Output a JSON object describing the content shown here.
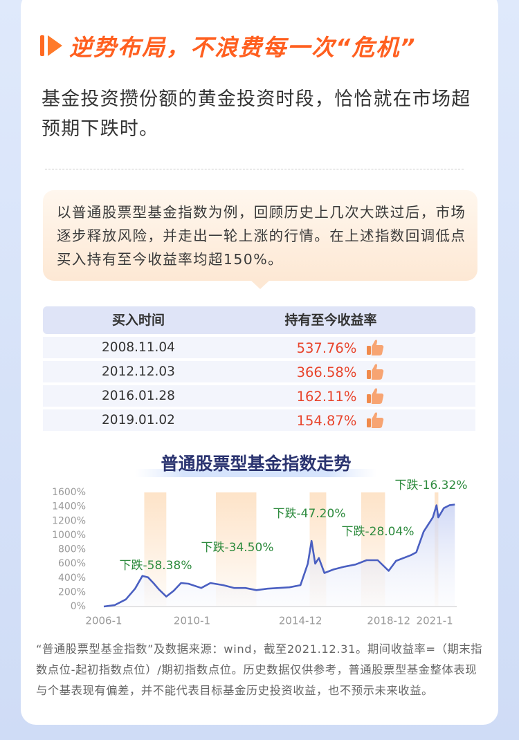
{
  "header": {
    "title": "逆势布局，不浪费每一次“危机”"
  },
  "intro": "基金投资攒份额的黄金投资时段，恰恰就在市场超预期下跌时。",
  "callout": "以普通股票型基金指数为例，回顾历史上几次大跌过后，市场逐步释放风险，并走出一轮上涨的行情。在上述指数回调低点买入持有至今收益率均超150%。",
  "table": {
    "columns": [
      "买入时间",
      "持有至今收益率"
    ],
    "rows": [
      [
        "2008.11.04",
        "537.76%"
      ],
      [
        "2012.12.03",
        "366.58%"
      ],
      [
        "2016.01.28",
        "162.11%"
      ],
      [
        "2019.01.02",
        "154.87%"
      ]
    ]
  },
  "chart_data": {
    "type": "line",
    "title": "普通股票型基金指数走势",
    "x": [
      "2006-01",
      "2006-07",
      "2007-01",
      "2007-06",
      "2007-10",
      "2008-01",
      "2008-04",
      "2008-07",
      "2008-11",
      "2009-03",
      "2009-07",
      "2009-11",
      "2010-06",
      "2010-11",
      "2011-06",
      "2011-12",
      "2012-06",
      "2012-12",
      "2013-06",
      "2013-12",
      "2014-06",
      "2014-12",
      "2015-04",
      "2015-06",
      "2015-08",
      "2015-10",
      "2016-01",
      "2016-06",
      "2016-12",
      "2017-06",
      "2017-12",
      "2018-06",
      "2018-12",
      "2019-04",
      "2019-12",
      "2020-03",
      "2020-07",
      "2020-12",
      "2021-02",
      "2021-03",
      "2021-06",
      "2021-09",
      "2021-12"
    ],
    "values": [
      0,
      20,
      100,
      250,
      430,
      410,
      330,
      240,
      140,
      220,
      330,
      320,
      260,
      330,
      300,
      260,
      260,
      230,
      250,
      260,
      270,
      300,
      600,
      920,
      600,
      680,
      470,
      520,
      560,
      590,
      650,
      650,
      500,
      640,
      720,
      760,
      1050,
      1250,
      1420,
      1250,
      1380,
      1420,
      1430
    ],
    "color": "#4a5fc1",
    "xlim": [
      "2006-01",
      "2022-01"
    ],
    "xticks": [
      {
        "value": "2006-01",
        "label": "2006-1"
      },
      {
        "value": "2010-01",
        "label": "2010-1"
      },
      {
        "value": "2014-12",
        "label": "2014-12"
      },
      {
        "value": "2018-12",
        "label": "2018-12"
      },
      {
        "value": "2021-01",
        "label": "2021-1"
      }
    ],
    "ylim": [
      0,
      1600
    ],
    "yticks": [
      {
        "value": 0,
        "label": "0%"
      },
      {
        "value": 200,
        "label": "200%"
      },
      {
        "value": 400,
        "label": "400%"
      },
      {
        "value": 600,
        "label": "600%"
      },
      {
        "value": 800,
        "label": "800%"
      },
      {
        "value": 1000,
        "label": "1000%"
      },
      {
        "value": 1200,
        "label": "1200%"
      },
      {
        "value": 1400,
        "label": "1400%"
      },
      {
        "value": 1600,
        "label": "1600%"
      }
    ],
    "shaded_periods": [
      [
        "2007-11",
        "2008-11"
      ],
      [
        "2011-02",
        "2012-12"
      ],
      [
        "2015-05",
        "2016-02"
      ],
      [
        "2017-09",
        "2018-10"
      ],
      [
        "2021-01",
        "2021-03"
      ]
    ],
    "shade_color": "#fde3c8",
    "annotations": [
      "下跌-58.38%",
      "下跌-34.50%",
      "下跌-47.20%",
      "下跌-28.04%",
      "下跌-16.32%"
    ],
    "annotation_color": "#2e8b3e"
  },
  "footnote": "“普通股票型基金指数”及数据来源：wind，截至2021.12.31。期间收益率=（期末指数点位-起初指数点位）/期初指数点位。历史数据仅供参考，普通股票型基金整体表现与个基表现有偏差，并不能代表目标基金历史投资收益，也不预示未来收益。"
}
